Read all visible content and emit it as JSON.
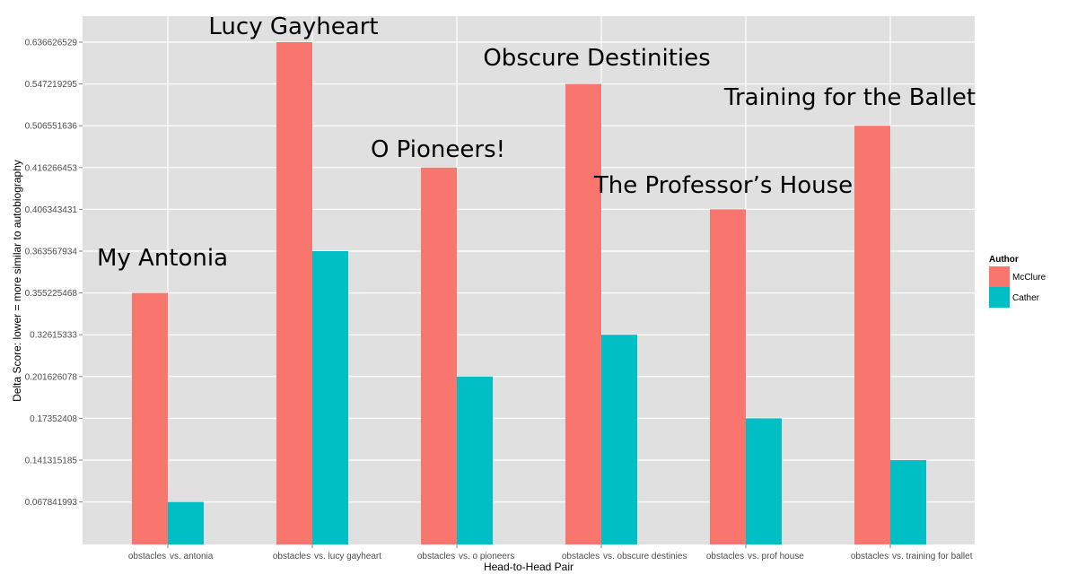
{
  "chart_data": {
    "type": "bar",
    "xlabel": "Head-to-Head Pair",
    "ylabel": "Delta Score: lower = more similar to autobiography",
    "y_ticks": [
      "0.067841993",
      "0.141315185",
      "0.17352408",
      "0.201626078",
      "0.32615333",
      "0.355225468",
      "0.363567934",
      "0.406343431",
      "0.416266453",
      "0.506551636",
      "0.547219295",
      "0.636626529"
    ],
    "categories": [
      {
        "left": "obstacles",
        "right": "vs. antonia"
      },
      {
        "left": "obstacles",
        "right": "vs. lucy gayheart"
      },
      {
        "left": "obstacles",
        "right": "vs. o pioneers"
      },
      {
        "left": "obstacles",
        "right": "vs. obscure destinies"
      },
      {
        "left": "obstacles",
        "right": "vs. prof house"
      },
      {
        "left": "obstacles",
        "right": "vs. training for ballet"
      }
    ],
    "series": [
      {
        "name": "McClure",
        "color": "#F8766D",
        "values": [
          0.355225468,
          0.636626529,
          0.416266453,
          0.547219295,
          0.406343431,
          0.506551636
        ]
      },
      {
        "name": "Cather",
        "color": "#00BFC4",
        "values": [
          0.067841993,
          0.363567934,
          0.201626078,
          0.32615333,
          0.17352408,
          0.141315185
        ]
      }
    ],
    "annotations": [
      "My Antonia",
      "Lucy Gayheart",
      "O Pioneers!",
      "Obscure Destinities",
      "The Professor’s House",
      "Training for the Ballet"
    ],
    "legend": {
      "title": "Author",
      "position": "right"
    },
    "grid": true,
    "background": "#E5E5E5"
  }
}
